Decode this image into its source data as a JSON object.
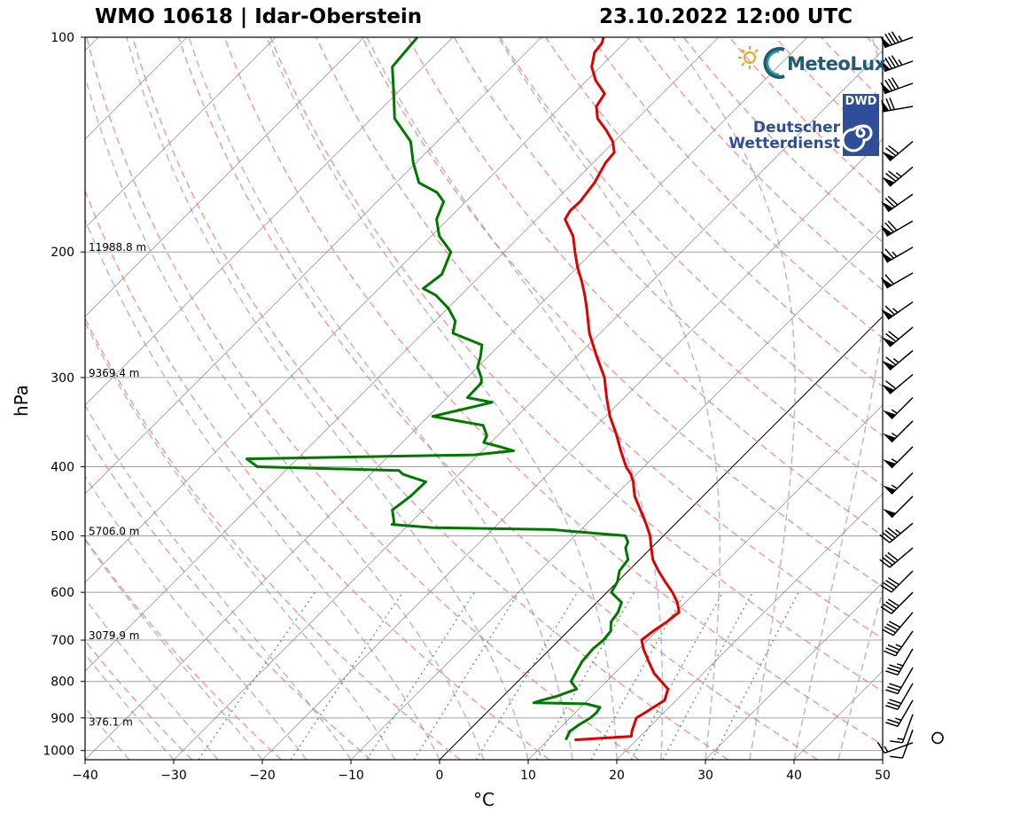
{
  "title_left": "WMO 10618 | Idar-Oberstein",
  "title_right": "23.10.2022 12:00 UTC",
  "logos": {
    "meteolux": "MeteoLux",
    "dwd_box": "DWD",
    "dwd_line1": "Deutscher",
    "dwd_line2": "Wetterdienst"
  },
  "colors": {
    "temperature": "#e00000",
    "dewpoint": "#007800",
    "dry_adiabat": "#f08080",
    "moist_adiabat": "#8080e0",
    "mixing_ratio": "#3aa03a",
    "isotherm": "#808080",
    "isobar": "#a0a0a0"
  },
  "chart_data": {
    "type": "line",
    "subtype": "skew-T log-p sounding",
    "xlabel": "°C",
    "ylabel": "hPa",
    "xlim": [
      -40,
      50
    ],
    "ylim": [
      1030,
      100
    ],
    "y_scale": "log",
    "x_ticks": [
      -40,
      -30,
      -20,
      -10,
      0,
      10,
      20,
      30,
      40,
      50
    ],
    "x_tick_labels": [
      "−40",
      "−30",
      "−20",
      "−10",
      "0",
      "10",
      "20",
      "30",
      "40",
      "50"
    ],
    "y_ticks": [
      100,
      200,
      300,
      400,
      500,
      600,
      700,
      800,
      900,
      1000
    ],
    "y_tick_labels": [
      "100",
      "200",
      "300",
      "400",
      "500",
      "600",
      "700",
      "800",
      "900",
      "1000"
    ],
    "height_labels": [
      {
        "p": 200,
        "text": "11988.8 m"
      },
      {
        "p": 300,
        "text": "9369.4 m"
      },
      {
        "p": 500,
        "text": "5706.0 m"
      },
      {
        "p": 700,
        "text": "3079.9 m"
      },
      {
        "p": 925,
        "text": "376.1 m"
      }
    ],
    "series": [
      {
        "name": "temperature",
        "points": [
          [
            966,
            13.0
          ],
          [
            955,
            19.0
          ],
          [
            940,
            18.5
          ],
          [
            900,
            17.5
          ],
          [
            880,
            18.0
          ],
          [
            850,
            18.7
          ],
          [
            820,
            17.8
          ],
          [
            800,
            16.2
          ],
          [
            780,
            14.5
          ],
          [
            750,
            12.5
          ],
          [
            720,
            10.5
          ],
          [
            700,
            9.3
          ],
          [
            680,
            9.6
          ],
          [
            660,
            10.1
          ],
          [
            640,
            10.4
          ],
          [
            620,
            9.1
          ],
          [
            600,
            7.4
          ],
          [
            580,
            5.4
          ],
          [
            560,
            3.4
          ],
          [
            540,
            1.5
          ],
          [
            520,
            0.0
          ],
          [
            500,
            -1.5
          ],
          [
            480,
            -3.4
          ],
          [
            460,
            -5.5
          ],
          [
            440,
            -7.7
          ],
          [
            420,
            -9.5
          ],
          [
            410,
            -10.6
          ],
          [
            400,
            -12.0
          ],
          [
            380,
            -14.4
          ],
          [
            360,
            -16.8
          ],
          [
            340,
            -19.5
          ],
          [
            320,
            -22.0
          ],
          [
            300,
            -24.5
          ],
          [
            280,
            -27.8
          ],
          [
            260,
            -31.2
          ],
          [
            240,
            -34.3
          ],
          [
            230,
            -36.0
          ],
          [
            220,
            -37.9
          ],
          [
            210,
            -40.0
          ],
          [
            200,
            -42.0
          ],
          [
            190,
            -44.0
          ],
          [
            180,
            -46.8
          ],
          [
            175,
            -47.2
          ],
          [
            170,
            -47.1
          ],
          [
            160,
            -47.6
          ],
          [
            150,
            -48.6
          ],
          [
            145,
            -48.8
          ],
          [
            140,
            -50.2
          ],
          [
            135,
            -52.2
          ],
          [
            130,
            -54.5
          ],
          [
            125,
            -56.0
          ],
          [
            120,
            -56.5
          ],
          [
            115,
            -59.0
          ],
          [
            110,
            -61.0
          ],
          [
            105,
            -62.3
          ],
          [
            102,
            -62.5
          ],
          [
            100,
            -63.0
          ]
        ]
      },
      {
        "name": "dewpoint",
        "points": [
          [
            966,
            12.0
          ],
          [
            940,
            11.5
          ],
          [
            920,
            11.8
          ],
          [
            900,
            12.3
          ],
          [
            885,
            12.4
          ],
          [
            870,
            12.2
          ],
          [
            860,
            10.3
          ],
          [
            857,
            4.2
          ],
          [
            850,
            4.8
          ],
          [
            840,
            6.0
          ],
          [
            820,
            7.5
          ],
          [
            800,
            6.0
          ],
          [
            780,
            5.6
          ],
          [
            750,
            5.0
          ],
          [
            720,
            4.8
          ],
          [
            700,
            5.0
          ],
          [
            680,
            4.8
          ],
          [
            660,
            3.8
          ],
          [
            640,
            3.5
          ],
          [
            620,
            2.8
          ],
          [
            600,
            0.5
          ],
          [
            580,
            0.0
          ],
          [
            560,
            -1.0
          ],
          [
            540,
            -1.3
          ],
          [
            520,
            -2.9
          ],
          [
            510,
            -3.3
          ],
          [
            500,
            -4.3
          ],
          [
            490,
            -13.3
          ],
          [
            487,
            -26.9
          ],
          [
            482,
            -31.9
          ],
          [
            480,
            -31.8
          ],
          [
            460,
            -33.5
          ],
          [
            440,
            -33.0
          ],
          [
            420,
            -32.9
          ],
          [
            410,
            -36.3
          ],
          [
            405,
            -37.2
          ],
          [
            400,
            -53.6
          ],
          [
            390,
            -55.7
          ],
          [
            385,
            -30.5
          ],
          [
            380,
            -26.5
          ],
          [
            375,
            -28.5
          ],
          [
            370,
            -30.8
          ],
          [
            362,
            -31.2
          ],
          [
            350,
            -32.8
          ],
          [
            340,
            -39.5
          ],
          [
            325,
            -34.4
          ],
          [
            320,
            -37.7
          ],
          [
            305,
            -37.8
          ],
          [
            300,
            -38.4
          ],
          [
            290,
            -40.0
          ],
          [
            280,
            -40.9
          ],
          [
            270,
            -42.0
          ],
          [
            260,
            -46.6
          ],
          [
            250,
            -47.7
          ],
          [
            240,
            -49.9
          ],
          [
            230,
            -52.8
          ],
          [
            225,
            -55.0
          ],
          [
            215,
            -54.5
          ],
          [
            200,
            -56.0
          ],
          [
            190,
            -59.1
          ],
          [
            180,
            -61.3
          ],
          [
            170,
            -62.5
          ],
          [
            165,
            -64.3
          ],
          [
            160,
            -67.4
          ],
          [
            150,
            -70.3
          ],
          [
            140,
            -73.0
          ],
          [
            130,
            -77.4
          ],
          [
            120,
            -80.3
          ],
          [
            110,
            -83.5
          ],
          [
            100,
            -84.0
          ]
        ]
      }
    ],
    "wind_barbs": [
      {
        "p": 100,
        "speed_kt": 85,
        "dir_deg": 250
      },
      {
        "p": 108,
        "speed_kt": 85,
        "dir_deg": 250
      },
      {
        "p": 116,
        "speed_kt": 80,
        "dir_deg": 250
      },
      {
        "p": 125,
        "speed_kt": 70,
        "dir_deg": 260
      },
      {
        "p": 140,
        "speed_kt": 70,
        "dir_deg": 230
      },
      {
        "p": 152,
        "speed_kt": 75,
        "dir_deg": 230
      },
      {
        "p": 166,
        "speed_kt": 70,
        "dir_deg": 235
      },
      {
        "p": 181,
        "speed_kt": 70,
        "dir_deg": 240
      },
      {
        "p": 197,
        "speed_kt": 65,
        "dir_deg": 240
      },
      {
        "p": 214,
        "speed_kt": 60,
        "dir_deg": 240
      },
      {
        "p": 235,
        "speed_kt": 65,
        "dir_deg": 235
      },
      {
        "p": 255,
        "speed_kt": 70,
        "dir_deg": 230
      },
      {
        "p": 275,
        "speed_kt": 65,
        "dir_deg": 230
      },
      {
        "p": 297,
        "speed_kt": 60,
        "dir_deg": 230
      },
      {
        "p": 320,
        "speed_kt": 55,
        "dir_deg": 225
      },
      {
        "p": 345,
        "speed_kt": 55,
        "dir_deg": 225
      },
      {
        "p": 375,
        "speed_kt": 55,
        "dir_deg": 225
      },
      {
        "p": 408,
        "speed_kt": 55,
        "dir_deg": 225
      },
      {
        "p": 440,
        "speed_kt": 50,
        "dir_deg": 225
      },
      {
        "p": 480,
        "speed_kt": 45,
        "dir_deg": 230
      },
      {
        "p": 520,
        "speed_kt": 40,
        "dir_deg": 230
      },
      {
        "p": 560,
        "speed_kt": 40,
        "dir_deg": 225
      },
      {
        "p": 600,
        "speed_kt": 40,
        "dir_deg": 225
      },
      {
        "p": 640,
        "speed_kt": 40,
        "dir_deg": 220
      },
      {
        "p": 680,
        "speed_kt": 35,
        "dir_deg": 215
      },
      {
        "p": 720,
        "speed_kt": 35,
        "dir_deg": 210
      },
      {
        "p": 765,
        "speed_kt": 30,
        "dir_deg": 210
      },
      {
        "p": 805,
        "speed_kt": 30,
        "dir_deg": 210
      },
      {
        "p": 850,
        "speed_kt": 25,
        "dir_deg": 210
      },
      {
        "p": 890,
        "speed_kt": 15,
        "dir_deg": 200
      },
      {
        "p": 935,
        "speed_kt": 10,
        "dir_deg": 200
      },
      {
        "p": 960,
        "speed_kt": 0,
        "dir_deg": 0
      },
      {
        "p": 975,
        "speed_kt": 15,
        "dir_deg": 250
      }
    ],
    "grid": true
  }
}
